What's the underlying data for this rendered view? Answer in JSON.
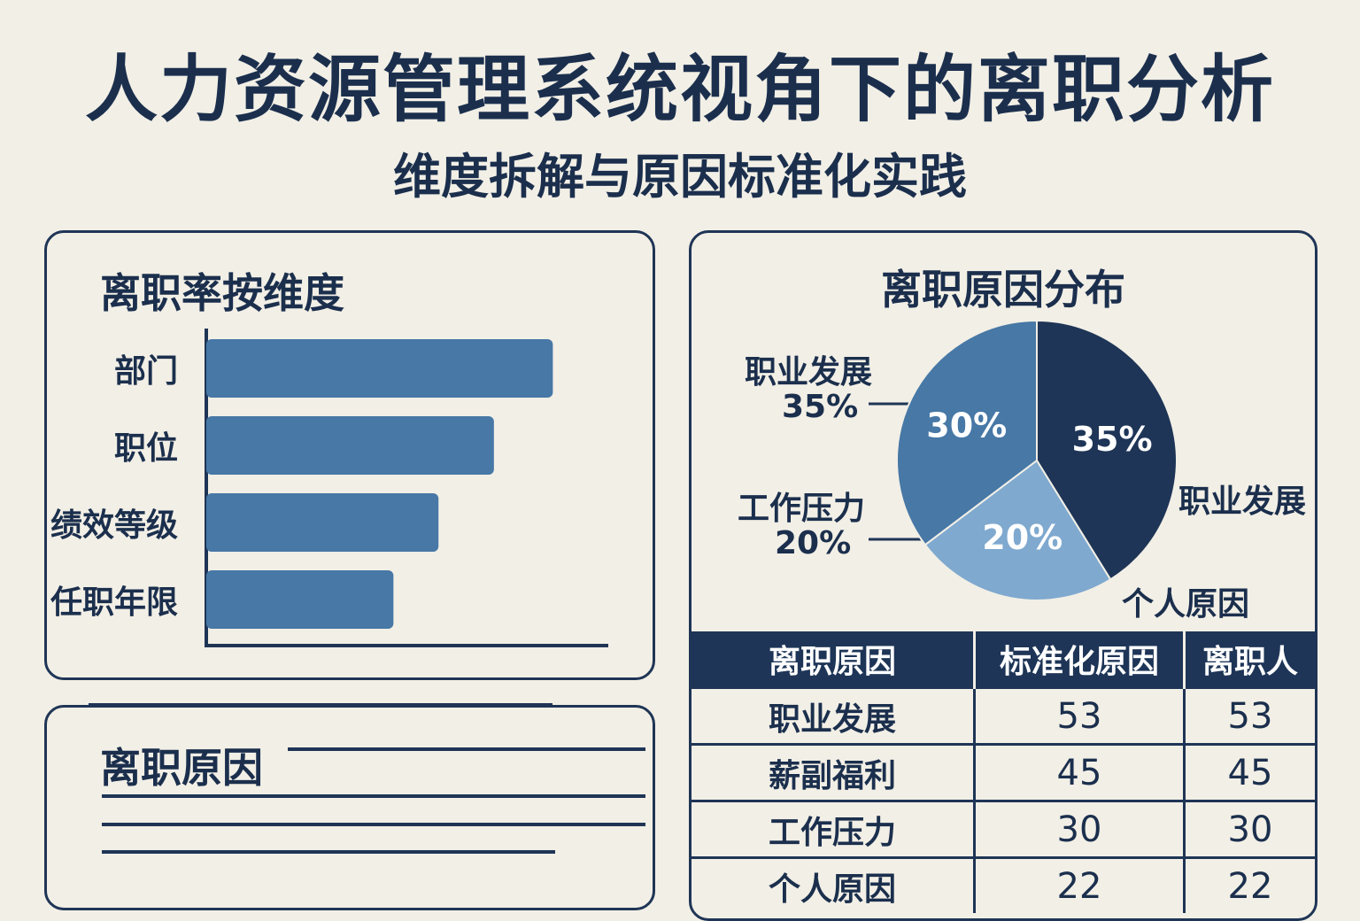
{
  "page": {
    "title": "人力资源管理系统视角下的离职分析",
    "subtitle": "维度拆解与原因标准化实践"
  },
  "colors": {
    "background": "#f2efe6",
    "navy": "#1e3557",
    "bar": "#4778a6",
    "pie_dark": "#1e3557",
    "pie_mid": "#4778a6",
    "pie_light": "#7fa9cf"
  },
  "bar_panel": {
    "title": "离职率按维度"
  },
  "reasons_panel": {
    "title": "离职原因"
  },
  "pie_panel": {
    "title": "离职原因分布",
    "external_labels": [
      {
        "name": "职业发展",
        "value": "35%"
      },
      {
        "name": "工作压力",
        "value": "20%"
      },
      {
        "name": "职业发展",
        "value": ""
      },
      {
        "name": "个人原因",
        "value": ""
      }
    ]
  },
  "table": {
    "headers": [
      "离职原因",
      "标准化原因",
      "离职人"
    ],
    "rows": [
      [
        "职业发展",
        "53",
        "53"
      ],
      [
        "薪副福利",
        "45",
        "45"
      ],
      [
        "工作压力",
        "30",
        "30"
      ],
      [
        "个人原因",
        "22",
        "22"
      ]
    ]
  },
  "chart_data": [
    {
      "type": "bar",
      "orientation": "horizontal",
      "title": "离职率按维度",
      "categories": [
        "部门",
        "职位",
        "绩效等级",
        "任职年限"
      ],
      "values": [
        100,
        83,
        67,
        54
      ],
      "xlim": [
        0,
        116
      ],
      "grid": false
    },
    {
      "type": "pie",
      "title": "离职原因分布",
      "labels": [
        "",
        "",
        ""
      ],
      "values": [
        35,
        20,
        30
      ],
      "value_labels": [
        "35%",
        "20%",
        "30%"
      ],
      "colors": [
        "#1e3557",
        "#7fa9cf",
        "#4778a6"
      ],
      "start_angle_deg": 0
    }
  ]
}
